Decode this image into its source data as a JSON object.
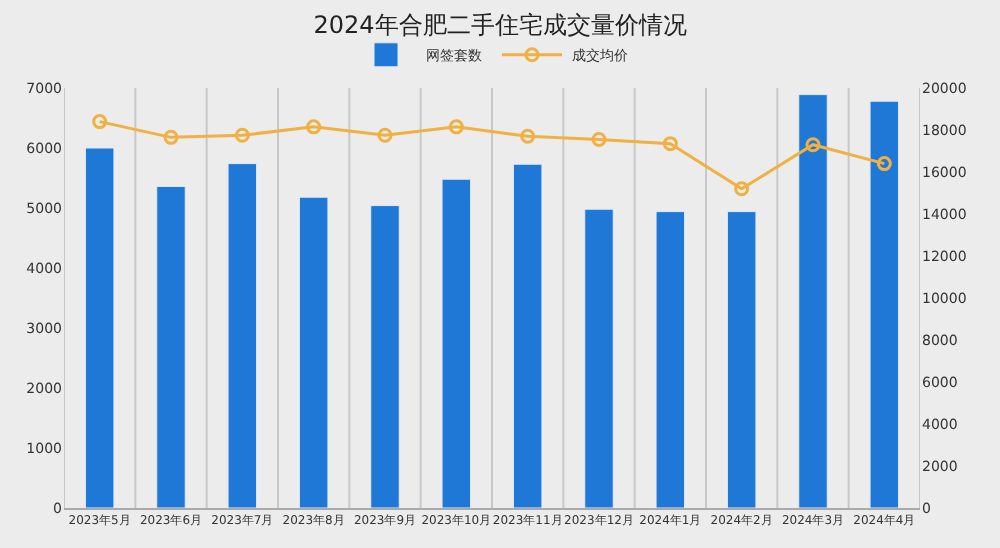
{
  "chart_data": {
    "type": "bar",
    "title": "2024年合肥二手住宅成交量价情况",
    "categories": [
      "2023年5月",
      "2023年6月",
      "2023年7月",
      "2023年8月",
      "2023年9月",
      "2023年10月",
      "2023年11月",
      "2023年12月",
      "2024年1月",
      "2024年2月",
      "2024年3月",
      "2024年4月"
    ],
    "series": [
      {
        "name": "网签套数",
        "color": "#1f78d6",
        "values": [
          6000,
          5360,
          5740,
          5180,
          5040,
          5480,
          5730,
          4980,
          4940,
          4940,
          6890,
          6780
        ]
      },
      {
        "name": "成交均价",
        "type": "line",
        "axis": "y2",
        "color": "#f0b042",
        "marker": "circle",
        "values": [
          18400,
          17650,
          17750,
          18150,
          17750,
          18150,
          17700,
          17550,
          17350,
          15200,
          17300,
          16400
        ]
      }
    ],
    "ylim": [
      0,
      7000
    ],
    "yticks": [
      0,
      1000,
      2000,
      3000,
      4000,
      5000,
      6000,
      7000
    ],
    "y2lim": [
      0,
      20000
    ],
    "y2ticks": [
      0,
      2000,
      4000,
      6000,
      8000,
      10000,
      12000,
      14000,
      16000,
      18000,
      20000
    ],
    "grid": "x",
    "legend": "top"
  }
}
